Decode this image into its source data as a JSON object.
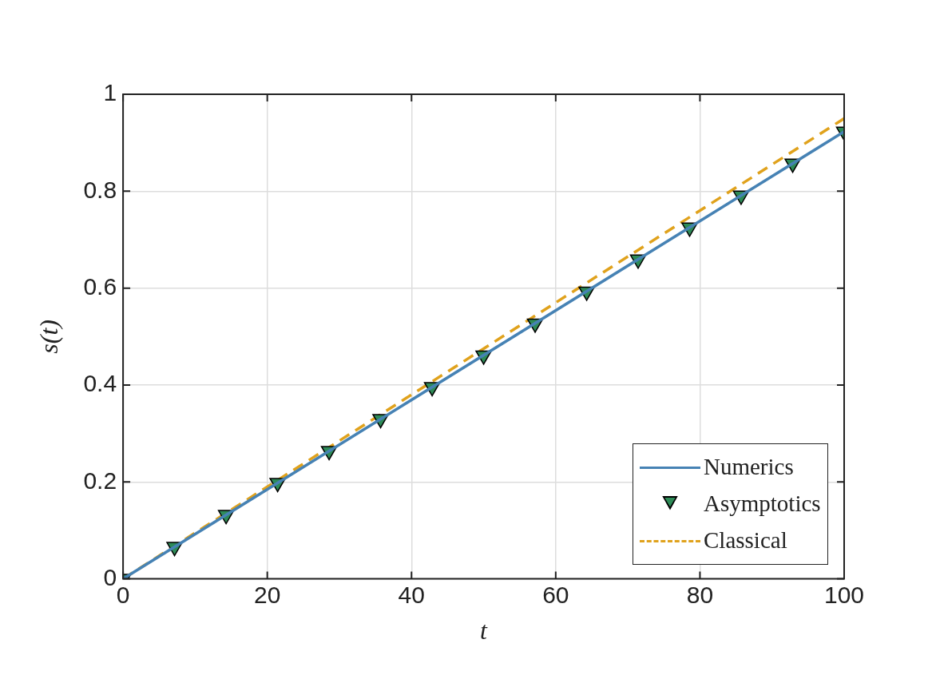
{
  "chart_data": {
    "type": "line",
    "xlabel": "t",
    "ylabel": "s(t)",
    "xlim": [
      0,
      100
    ],
    "ylim": [
      0,
      1
    ],
    "xticks": [
      0,
      20,
      40,
      60,
      80,
      100
    ],
    "yticks": [
      0,
      0.2,
      0.4,
      0.6,
      0.8,
      1
    ],
    "grid": true,
    "legend": "bottom right",
    "series": [
      {
        "name": "Numerics",
        "type": "line",
        "color": "#4682b4",
        "marker": "none",
        "line_style": "solid",
        "x": [
          0,
          100
        ],
        "values": [
          0,
          0.923
        ]
      },
      {
        "name": "Asymptotics",
        "type": "scatter",
        "color": "#2e8b57",
        "marker": "triangle",
        "x": [
          0,
          7.14,
          14.29,
          21.43,
          28.57,
          35.71,
          42.86,
          50,
          57.14,
          64.29,
          71.43,
          78.57,
          85.71,
          92.86,
          100
        ],
        "values": [
          0,
          0.066,
          0.132,
          0.198,
          0.264,
          0.33,
          0.396,
          0.461,
          0.527,
          0.593,
          0.659,
          0.725,
          0.791,
          0.857,
          0.923
        ]
      },
      {
        "name": "Classical",
        "type": "line",
        "color": "#e0a21c",
        "marker": "none",
        "line_style": "dashed",
        "x": [
          0,
          100
        ],
        "values": [
          0,
          0.95
        ]
      }
    ]
  }
}
